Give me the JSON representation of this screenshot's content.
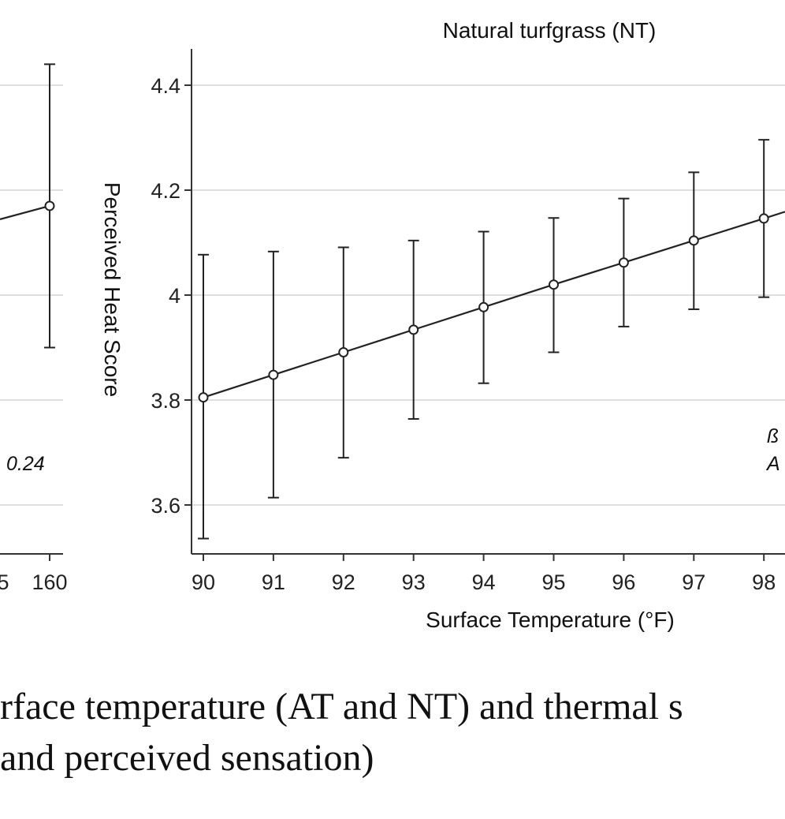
{
  "chart_data": [
    {
      "type": "line",
      "panel": "left (partially visible)",
      "x": [
        160
      ],
      "mean": [
        4.17
      ],
      "ci_low": [
        3.9
      ],
      "ci_high": [
        4.44
      ],
      "visible_tick_labels": [
        "5",
        "160"
      ],
      "annotation": "0.24"
    },
    {
      "type": "line",
      "title": "Natural turfgrass (NT)",
      "xlabel": "Surface Temperature (°F)",
      "ylabel": "Perceived Heat Score",
      "xlim": [
        89.8,
        99.5
      ],
      "ylim": [
        3.5,
        4.47
      ],
      "xticks": [
        90,
        91,
        92,
        93,
        94,
        95,
        96,
        97,
        98
      ],
      "yticks": [
        3.6,
        3.8,
        4,
        4.2,
        4.4
      ],
      "ytick_labels": [
        "3.6",
        "3.8",
        "4",
        "4.2",
        "4.4"
      ],
      "x": [
        90,
        91,
        92,
        93,
        94,
        95,
        96,
        97,
        98
      ],
      "mean": [
        3.805,
        3.848,
        3.891,
        3.934,
        3.977,
        4.02,
        4.062,
        4.104,
        4.146
      ],
      "ci_low": [
        3.536,
        3.614,
        3.69,
        3.764,
        3.832,
        3.891,
        3.94,
        3.973,
        3.996
      ],
      "ci_high": [
        4.077,
        4.083,
        4.091,
        4.104,
        4.121,
        4.147,
        4.184,
        4.234,
        4.296
      ],
      "annotation_partial": [
        "ß",
        "A"
      ]
    }
  ],
  "caption": {
    "line1": "rface temperature (AT and NT) and thermal s",
    "line2": " and perceived sensation)"
  }
}
